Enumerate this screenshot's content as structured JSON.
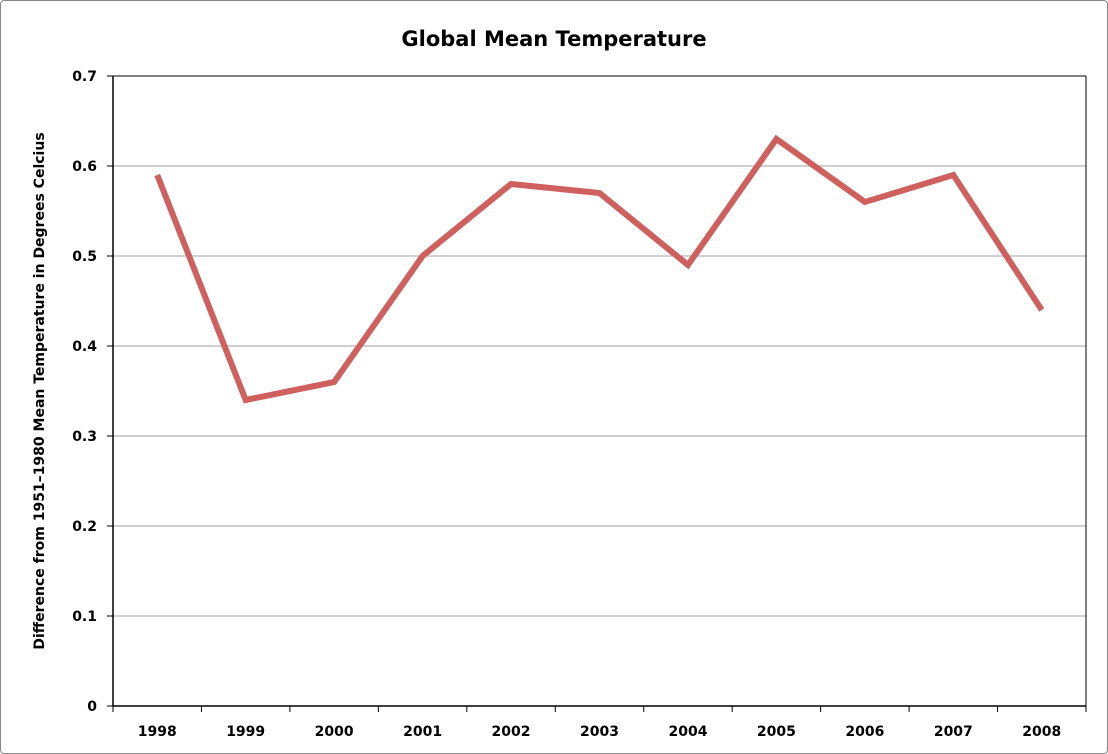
{
  "chart_data": {
    "type": "line",
    "title": "Global Mean Temperature",
    "xlabel": "",
    "ylabel": "Difference from 1951–1980 Mean Temperature in Degrees Celcius",
    "categories": [
      "1998",
      "1999",
      "2000",
      "2001",
      "2002",
      "2003",
      "2004",
      "2005",
      "2006",
      "2007",
      "2008"
    ],
    "values": [
      0.59,
      0.34,
      0.36,
      0.5,
      0.58,
      0.57,
      0.49,
      0.63,
      0.56,
      0.59,
      0.44
    ],
    "ylim": [
      0,
      0.7
    ],
    "yticks": [
      "0",
      "0.1",
      "0.2",
      "0.3",
      "0.4",
      "0.5",
      "0.6",
      "0.7"
    ],
    "grid": "horizontal",
    "legend": "none",
    "line_color": "#d0605e"
  }
}
